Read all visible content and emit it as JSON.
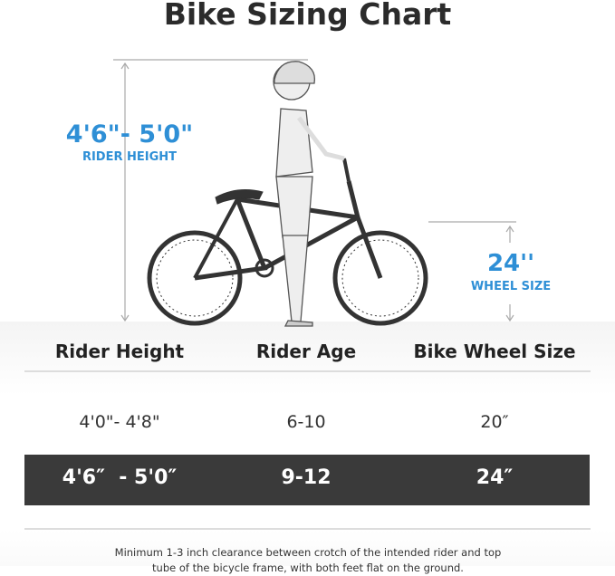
{
  "title": "Bike Sizing Chart",
  "diagram": {
    "rider_height_value": "4'6\"- 5'0\"",
    "rider_height_label": "RIDER HEIGHT",
    "wheel_size_value": "24''",
    "wheel_size_label": "WHEEL SIZE",
    "accent_color": "#2e8fd6"
  },
  "table": {
    "headers": [
      "Rider Height",
      "Rider Age",
      "Bike Wheel Size"
    ],
    "rows": [
      {
        "height": "4'0\"- 4'8\"",
        "age": "6-10",
        "wheel": "20″",
        "highlighted": false
      },
      {
        "height": "4'6″  - 5'0″",
        "age": "9-12",
        "wheel": "24″",
        "highlighted": true
      }
    ]
  },
  "footnote": {
    "line1": "Minimum 1-3 inch clearance between crotch of the intended rider and top",
    "line2": "tube of the bicycle frame, with both feet flat on the ground."
  }
}
